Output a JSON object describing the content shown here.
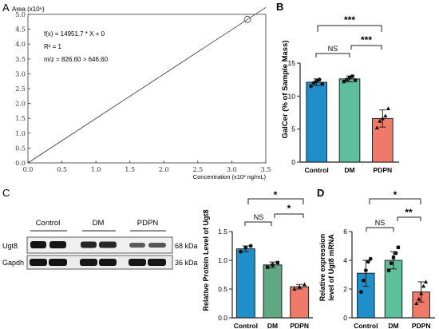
{
  "panels": {
    "A": {
      "label": "A",
      "y_title": "Area (x10⁶)",
      "x_title": "Concentration (x10² ng/mL)",
      "annotation": [
        "f(x) = 14951.7 * X + 0",
        "R² = 1",
        "m/z = 826.60 > 646.60"
      ]
    },
    "B": {
      "label": "B",
      "y_title": "GalCer (% of Sample Mass)",
      "sig": [
        "***",
        "NS",
        "***"
      ]
    },
    "C": {
      "label": "C",
      "blot": {
        "groups": [
          "Control",
          "DM",
          "PDPN"
        ],
        "rows": [
          {
            "name": "Ugt8",
            "size": "68 kDa"
          },
          {
            "name": "Gapdh",
            "size": "36 kDa"
          }
        ]
      },
      "y_title": "Relative Protein Level of Ugt8",
      "sig": [
        "*",
        "NS",
        "*"
      ]
    },
    "D": {
      "label": "D",
      "y_title": [
        "Relative expression",
        "level of Ugt8 mRNA"
      ],
      "sig": [
        "*",
        "NS",
        "**"
      ]
    }
  },
  "colors": {
    "control": "#1f8fc9",
    "dm": "#5dbf9c",
    "dm_c": "#5fa882",
    "pdpn": "#f07a6a",
    "line": "#222222"
  },
  "chart_data": [
    {
      "id": "A",
      "type": "line",
      "x": [
        0,
        3.23
      ],
      "y": [
        0,
        4.83
      ],
      "xlim": [
        0,
        3.5
      ],
      "ylim": [
        0,
        5.0
      ],
      "xticks": [
        "0.0",
        "0.5",
        "1.0",
        "1.5",
        "2.0",
        "2.5",
        "3.0",
        "3.5"
      ],
      "yticks": [
        "0.0",
        "0.5",
        "1.0",
        "1.5",
        "2.0",
        "2.5",
        "3.0",
        "3.5",
        "4.0",
        "4.5",
        "5.0"
      ],
      "title": "",
      "xlabel": "Concentration (x10² ng/mL)",
      "ylabel": "Area (x10⁶)"
    },
    {
      "id": "B",
      "type": "bar",
      "categories": [
        "Control",
        "DM",
        "PDPN"
      ],
      "values": [
        12.1,
        12.6,
        6.6
      ],
      "errors": [
        0.5,
        0.45,
        1.3
      ],
      "points": [
        [
          11.5,
          12.0,
          12.3,
          12.5,
          11.8
        ],
        [
          12.2,
          12.5,
          12.8,
          13.0,
          12.4
        ],
        [
          5.2,
          6.2,
          6.6,
          7.0,
          8.1
        ]
      ],
      "ylim": [
        0,
        15
      ],
      "yticks": [
        "0",
        "5",
        "10",
        "15"
      ]
    },
    {
      "id": "C",
      "type": "bar",
      "categories": [
        "Control",
        "DM",
        "PDPN"
      ],
      "values": [
        1.2,
        0.92,
        0.54
      ],
      "errors": [
        0.05,
        0.05,
        0.04
      ],
      "points": [
        [
          1.15,
          1.22,
          1.25
        ],
        [
          0.88,
          0.92,
          0.96
        ],
        [
          0.5,
          0.54,
          0.58
        ]
      ],
      "ylim": [
        0,
        1.5
      ],
      "yticks": [
        "0.0",
        "0.5",
        "1.0",
        "1.5"
      ]
    },
    {
      "id": "D",
      "type": "bar",
      "categories": [
        "Control",
        "DM",
        "PDPN"
      ],
      "values": [
        3.1,
        4.0,
        1.8
      ],
      "errors": [
        0.9,
        0.6,
        0.7
      ],
      "points": [
        [
          1.8,
          2.6,
          3.3,
          3.9,
          4.1
        ],
        [
          3.3,
          3.8,
          4.2,
          4.5,
          4.9
        ],
        [
          1.0,
          1.3,
          1.7,
          2.2,
          2.5
        ]
      ],
      "ylim": [
        0,
        6
      ],
      "yticks": [
        "0",
        "2",
        "4",
        "6"
      ]
    }
  ]
}
